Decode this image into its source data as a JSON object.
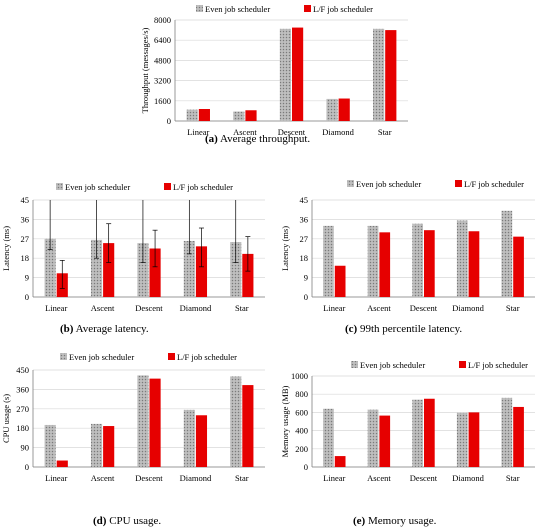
{
  "colors": {
    "even": "#a6a6a6",
    "lf": "#e60000",
    "grid": "#d9d9d9",
    "axis": "#7f7f7f"
  },
  "legend": {
    "even": "Even job scheduler",
    "lf": "L/F job scheduler"
  },
  "chart_data": [
    {
      "id": "a",
      "type": "bar",
      "caption_letter": "(a)",
      "caption_text": " Average throughput.",
      "ylabel": "Throughput (messages/s)",
      "categories": [
        "Linear",
        "Ascent",
        "Descent",
        "Diamond",
        "Star"
      ],
      "yticks": [
        "0",
        "1600",
        "3200",
        "4800",
        "6400",
        "8000"
      ],
      "ylim": [
        0,
        8000
      ],
      "grid": true,
      "legend_position": "top-right",
      "series": [
        {
          "key": "even",
          "values": [
            900,
            750,
            7300,
            1750,
            7300
          ]
        },
        {
          "key": "lf",
          "values": [
            950,
            850,
            7400,
            1780,
            7200
          ]
        }
      ]
    },
    {
      "id": "b",
      "type": "bar",
      "caption_letter": "(b)",
      "caption_text": " Average latency.",
      "ylabel": "Latency (ms)",
      "categories": [
        "Linear",
        "Ascent",
        "Descent",
        "Diamond",
        "Star"
      ],
      "yticks": [
        "0",
        "9",
        "18",
        "27",
        "36",
        "45"
      ],
      "ylim": [
        0,
        45
      ],
      "grid": true,
      "legend_position": "top",
      "series": [
        {
          "key": "even",
          "values": [
            27,
            26.5,
            25,
            26,
            25.5
          ],
          "error_low": [
            22,
            18,
            16,
            20,
            16
          ],
          "error_high": [
            45,
            45,
            45,
            45,
            45
          ]
        },
        {
          "key": "lf",
          "values": [
            11,
            25,
            22.5,
            23.5,
            20
          ],
          "error_low": [
            4,
            16,
            14,
            14,
            12
          ],
          "error_high": [
            17,
            34,
            31,
            32,
            28
          ]
        }
      ]
    },
    {
      "id": "c",
      "type": "bar",
      "caption_letter": "(c)",
      "caption_text": " 99th percentile latency.",
      "ylabel": "Latency (ms)",
      "categories": [
        "Linear",
        "Ascent",
        "Descent",
        "Diamond",
        "Star"
      ],
      "yticks": [
        "0",
        "9",
        "18",
        "27",
        "36",
        "45"
      ],
      "ylim": [
        0,
        45
      ],
      "grid": true,
      "legend_position": "top",
      "series": [
        {
          "key": "even",
          "values": [
            33,
            33,
            34,
            35.5,
            40
          ]
        },
        {
          "key": "lf",
          "values": [
            14.5,
            30,
            31,
            30.5,
            28
          ]
        }
      ]
    },
    {
      "id": "d",
      "type": "bar",
      "caption_letter": "(d)",
      "caption_text": " CPU usage.",
      "ylabel": "CPU usage (s)",
      "categories": [
        "Linear",
        "Ascent",
        "Descent",
        "Diamond",
        "Star"
      ],
      "yticks": [
        "0",
        "90",
        "180",
        "270",
        "360",
        "450"
      ],
      "ylim": [
        0,
        450
      ],
      "grid": true,
      "legend_position": "top",
      "series": [
        {
          "key": "even",
          "values": [
            195,
            200,
            425,
            265,
            420
          ]
        },
        {
          "key": "lf",
          "values": [
            30,
            190,
            410,
            240,
            380
          ]
        }
      ]
    },
    {
      "id": "e",
      "type": "bar",
      "caption_letter": "(e)",
      "caption_text": " Memory usage.",
      "ylabel": "Memory usage (MB)",
      "categories": [
        "Linear",
        "Ascent",
        "Descent",
        "Diamond",
        "Star"
      ],
      "yticks": [
        "0",
        "200",
        "400",
        "600",
        "800",
        "1000"
      ],
      "ylim": [
        0,
        1000
      ],
      "grid": true,
      "legend_position": "top",
      "series": [
        {
          "key": "even",
          "values": [
            640,
            630,
            740,
            595,
            760
          ]
        },
        {
          "key": "lf",
          "values": [
            120,
            565,
            750,
            600,
            660
          ]
        }
      ]
    }
  ]
}
